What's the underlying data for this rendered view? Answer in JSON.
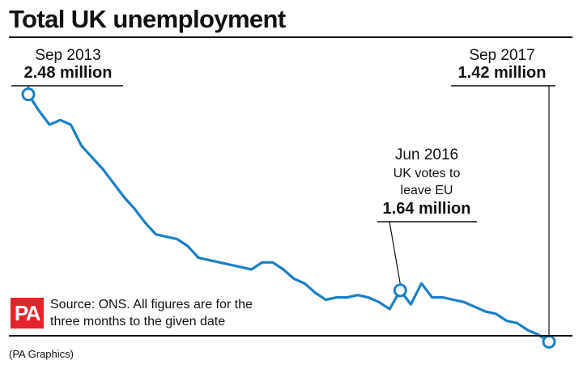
{
  "source_text": "Source: ONS. All figures are for the three months to the given date",
  "credit": "(PA Graphics)",
  "logo_text": "PA",
  "colors": {
    "line": "#1a80c4",
    "logo": "#e4242b",
    "text": "#111111"
  },
  "chart_data": {
    "type": "line",
    "title": "Total UK unemployment",
    "xlabel": "",
    "ylabel": "",
    "unit": "million",
    "x_start": "Sep 2013",
    "x_end": "Sep 2017",
    "ylim": [
      1.3,
      2.6
    ],
    "grid": false,
    "series": [
      {
        "values": [
          2.48,
          2.41,
          2.35,
          2.37,
          2.35,
          2.26,
          2.21,
          2.16,
          2.1,
          2.04,
          1.99,
          1.93,
          1.88,
          1.87,
          1.86,
          1.83,
          1.78,
          1.77,
          1.76,
          1.75,
          1.74,
          1.73,
          1.76,
          1.76,
          1.73,
          1.69,
          1.67,
          1.63,
          1.6,
          1.61,
          1.61,
          1.62,
          1.61,
          1.59,
          1.56,
          1.64,
          1.58,
          1.67,
          1.61,
          1.61,
          1.6,
          1.59,
          1.57,
          1.55,
          1.54,
          1.51,
          1.5,
          1.47,
          1.45,
          1.42
        ]
      }
    ],
    "annotations": [
      {
        "date": "Sep 2013",
        "value_label": "2.48 million",
        "index": 0
      },
      {
        "date": "Jun 2016",
        "note": [
          "UK votes to",
          "leave EU"
        ],
        "value_label": "1.64 million",
        "index": 35
      },
      {
        "date": "Sep 2017",
        "value_label": "1.42 million",
        "index": 49
      }
    ]
  }
}
